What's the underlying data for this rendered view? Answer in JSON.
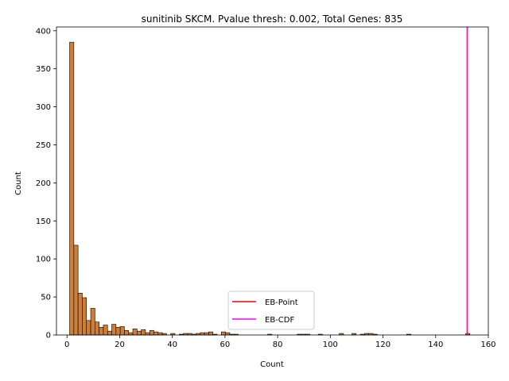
{
  "chart_data": {
    "type": "bar",
    "title": "sunitinib SKCM. Pvalue thresh: 0.002, Total Genes: 835",
    "xlabel": "Count",
    "ylabel": "Count",
    "xlim": [
      -4,
      160
    ],
    "ylim": [
      0,
      405
    ],
    "xticks": [
      "0",
      "20",
      "40",
      "60",
      "80",
      "100",
      "120",
      "140",
      "160"
    ],
    "yticks": [
      "0",
      "50",
      "100",
      "150",
      "200",
      "250",
      "300",
      "350",
      "400"
    ],
    "bin_width": 1.6,
    "bar_color": "#cd7f3a",
    "bars": [
      {
        "x": 1.0,
        "count": 385
      },
      {
        "x": 2.6,
        "count": 118
      },
      {
        "x": 4.2,
        "count": 55
      },
      {
        "x": 5.8,
        "count": 49
      },
      {
        "x": 7.4,
        "count": 19
      },
      {
        "x": 9.0,
        "count": 35
      },
      {
        "x": 10.6,
        "count": 17
      },
      {
        "x": 12.2,
        "count": 10
      },
      {
        "x": 13.8,
        "count": 13
      },
      {
        "x": 15.4,
        "count": 5
      },
      {
        "x": 17.0,
        "count": 14
      },
      {
        "x": 18.6,
        "count": 10
      },
      {
        "x": 20.2,
        "count": 11
      },
      {
        "x": 21.8,
        "count": 6
      },
      {
        "x": 23.4,
        "count": 3
      },
      {
        "x": 25.0,
        "count": 8
      },
      {
        "x": 26.6,
        "count": 5
      },
      {
        "x": 28.2,
        "count": 7
      },
      {
        "x": 29.8,
        "count": 3
      },
      {
        "x": 31.4,
        "count": 6
      },
      {
        "x": 33.0,
        "count": 4
      },
      {
        "x": 34.6,
        "count": 3
      },
      {
        "x": 36.2,
        "count": 2
      },
      {
        "x": 39.4,
        "count": 2
      },
      {
        "x": 42.6,
        "count": 1
      },
      {
        "x": 44.2,
        "count": 2
      },
      {
        "x": 45.8,
        "count": 2
      },
      {
        "x": 47.4,
        "count": 1
      },
      {
        "x": 49.0,
        "count": 2
      },
      {
        "x": 50.6,
        "count": 3
      },
      {
        "x": 52.2,
        "count": 3
      },
      {
        "x": 53.8,
        "count": 4
      },
      {
        "x": 55.4,
        "count": 1
      },
      {
        "x": 58.6,
        "count": 4
      },
      {
        "x": 60.2,
        "count": 3
      },
      {
        "x": 61.8,
        "count": 1
      },
      {
        "x": 63.4,
        "count": 1
      },
      {
        "x": 76.2,
        "count": 1
      },
      {
        "x": 87.4,
        "count": 1
      },
      {
        "x": 89.0,
        "count": 1
      },
      {
        "x": 90.6,
        "count": 1
      },
      {
        "x": 95.4,
        "count": 1
      },
      {
        "x": 103.4,
        "count": 2
      },
      {
        "x": 108.2,
        "count": 2
      },
      {
        "x": 111.4,
        "count": 1
      },
      {
        "x": 113.0,
        "count": 2
      },
      {
        "x": 114.6,
        "count": 2
      },
      {
        "x": 116.2,
        "count": 1
      },
      {
        "x": 129.0,
        "count": 1
      },
      {
        "x": 151.4,
        "count": 2
      }
    ],
    "vlines": [
      {
        "name": "EB-Point",
        "x": 152.0,
        "color": "#ff0000"
      },
      {
        "name": "EB-CDF",
        "x": 152.0,
        "color": "#ff00ff"
      }
    ],
    "legend": {
      "position": "lower center",
      "entries": [
        "EB-Point",
        "EB-CDF"
      ]
    },
    "grid": false
  }
}
